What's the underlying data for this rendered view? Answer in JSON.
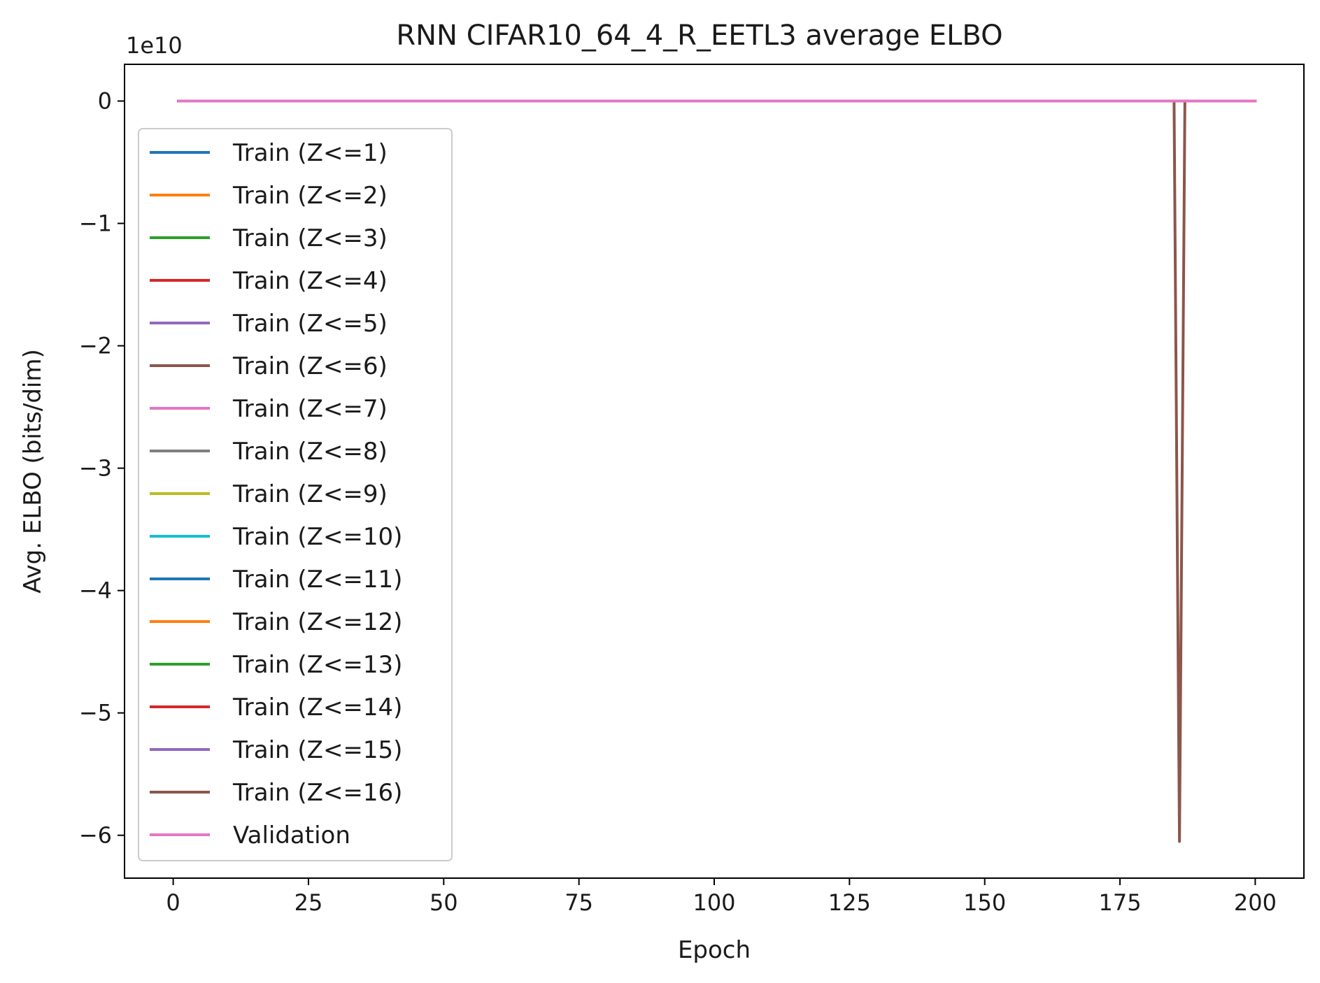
{
  "chart_data": {
    "type": "line",
    "title": "RNN CIFAR10_64_4_R_EETL3 average ELBO",
    "xlabel": "Epoch",
    "ylabel": "Avg. ELBO (bits/dim)",
    "y_offset_label": "1e10",
    "y_scale": 10000000000,
    "xlim": [
      -9,
      209
    ],
    "ylim": [
      -63500000000,
      3000000000
    ],
    "xticks": [
      0,
      25,
      50,
      75,
      100,
      125,
      150,
      175,
      200
    ],
    "xtick_labels": [
      "0",
      "25",
      "50",
      "75",
      "100",
      "125",
      "150",
      "175",
      "200"
    ],
    "yticks": [
      0,
      -10000000000,
      -20000000000,
      -30000000000,
      -40000000000,
      -50000000000,
      -60000000000
    ],
    "ytick_labels": [
      "0",
      "−1",
      "−2",
      "−3",
      "−4",
      "−5",
      "−6"
    ],
    "grid": false,
    "legend_position": "upper-left",
    "series": [
      {
        "name": "Train (Z<=1)",
        "color": "#1f77b4",
        "x": [
          1,
          200
        ],
        "values": [
          0,
          0
        ]
      },
      {
        "name": "Train (Z<=2)",
        "color": "#ff7f0e",
        "x": [
          1,
          200
        ],
        "values": [
          0,
          0
        ]
      },
      {
        "name": "Train (Z<=3)",
        "color": "#2ca02c",
        "x": [
          1,
          200
        ],
        "values": [
          0,
          0
        ]
      },
      {
        "name": "Train (Z<=4)",
        "color": "#d62728",
        "x": [
          1,
          200
        ],
        "values": [
          0,
          0
        ]
      },
      {
        "name": "Train (Z<=5)",
        "color": "#9467bd",
        "x": [
          1,
          200
        ],
        "values": [
          0,
          0
        ]
      },
      {
        "name": "Train (Z<=6)",
        "color": "#8c564b",
        "x": [
          1,
          200
        ],
        "values": [
          0,
          0
        ]
      },
      {
        "name": "Train (Z<=7)",
        "color": "#e377c2",
        "x": [
          1,
          200
        ],
        "values": [
          0,
          0
        ]
      },
      {
        "name": "Train (Z<=8)",
        "color": "#7f7f7f",
        "x": [
          1,
          200
        ],
        "values": [
          0,
          0
        ]
      },
      {
        "name": "Train (Z<=9)",
        "color": "#bcbd22",
        "x": [
          1,
          200
        ],
        "values": [
          0,
          0
        ]
      },
      {
        "name": "Train (Z<=10)",
        "color": "#17becf",
        "x": [
          1,
          200
        ],
        "values": [
          0,
          0
        ]
      },
      {
        "name": "Train (Z<=11)",
        "color": "#1f77b4",
        "x": [
          1,
          200
        ],
        "values": [
          0,
          0
        ]
      },
      {
        "name": "Train (Z<=12)",
        "color": "#ff7f0e",
        "x": [
          1,
          200
        ],
        "values": [
          0,
          0
        ]
      },
      {
        "name": "Train (Z<=13)",
        "color": "#2ca02c",
        "x": [
          1,
          200
        ],
        "values": [
          0,
          0
        ]
      },
      {
        "name": "Train (Z<=14)",
        "color": "#d62728",
        "x": [
          1,
          200
        ],
        "values": [
          0,
          0
        ]
      },
      {
        "name": "Train (Z<=15)",
        "color": "#9467bd",
        "x": [
          1,
          200
        ],
        "values": [
          0,
          0
        ]
      },
      {
        "name": "Train (Z<=16)",
        "color": "#8c564b",
        "x": [
          1,
          185,
          186,
          187,
          200
        ],
        "values": [
          0,
          0,
          -60500000000,
          0,
          0
        ]
      },
      {
        "name": "Validation",
        "color": "#e377c2",
        "x": [
          1,
          200
        ],
        "values": [
          0,
          0
        ]
      }
    ]
  }
}
